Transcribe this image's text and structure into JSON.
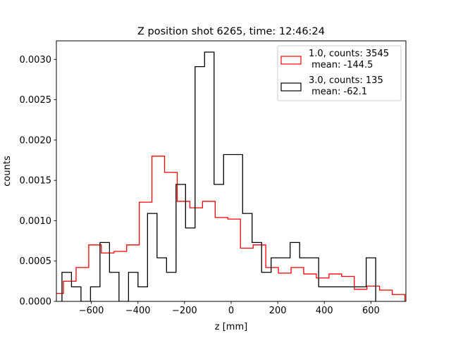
{
  "chart_data": {
    "type": "histogram",
    "title": "Z position shot 6265, time: 12:46:24",
    "xlabel": "z [mm]",
    "ylabel": "counts",
    "xlim": [
      -750,
      750
    ],
    "ylim": [
      0,
      0.00323
    ],
    "xticks": [
      -600,
      -400,
      -200,
      0,
      200,
      400,
      600
    ],
    "xtick_labels": [
      "−600",
      "−400",
      "−200",
      "0",
      "200",
      "400",
      "600"
    ],
    "yticks": [
      0,
      0.0005,
      0.001,
      0.0015,
      0.002,
      0.0025,
      0.003
    ],
    "ytick_labels": [
      "0.0000",
      "0.0005",
      "0.0010",
      "0.0015",
      "0.0020",
      "0.0025",
      "0.0030"
    ],
    "grid": false,
    "legend_position": "top-right",
    "series": [
      {
        "name": "1.0, counts: 3545",
        "name_line2": " mean: -144.5",
        "color": "#ff0000",
        "bin_start": -774,
        "bin_width": 54.27,
        "values": [
          9.9e-05,
          0.00025,
          0.00042,
          0.0007,
          0.0006,
          0.00062,
          0.0007,
          0.00123,
          0.0018,
          0.0016,
          0.00124,
          0.00116,
          0.00124,
          0.00104,
          0.00102,
          0.00066,
          0.0007,
          0.00042,
          0.00035,
          0.00042,
          0.00034,
          0.00029,
          0.00034,
          0.00031,
          0.00015,
          0.00019,
          0.00014,
          8.5e-05
        ]
      },
      {
        "name": "3.0, counts: 135",
        "name_line2": " mean: -62.1",
        "color": "#000000",
        "bin_start": -726,
        "bin_width": 40.8,
        "values": [
          0.00036,
          0.00018,
          0,
          0.00018,
          0.00073,
          0.00036,
          0,
          0.00036,
          0.00018,
          0.00109,
          0.00054,
          0.00036,
          0.00145,
          0.00091,
          0.00291,
          0.00309,
          0.00145,
          0.00182,
          0.00182,
          0.00109,
          0.00073,
          0.00036,
          0.00054,
          0.00054,
          0.00073,
          0.00054,
          0.00054,
          0.00018,
          0.00018,
          0.00018,
          0.00018,
          0.00018,
          0.00054
        ]
      }
    ]
  }
}
